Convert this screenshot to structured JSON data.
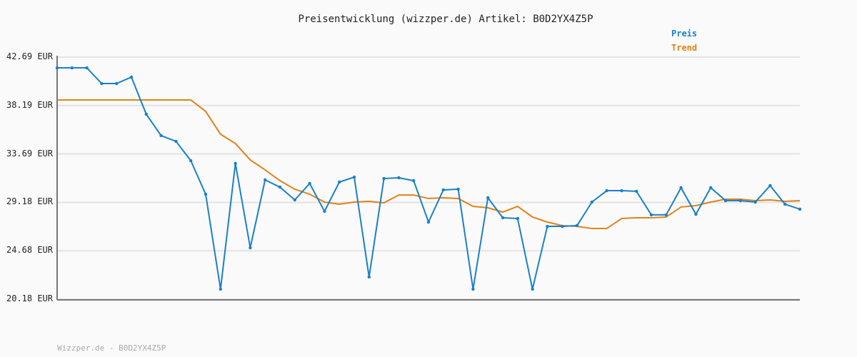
{
  "chart_data": {
    "type": "line",
    "title": "Preisentwicklung (wizzper.de) Artikel: B0D2YX4Z5P",
    "xlabel": "",
    "ylabel": "",
    "ylim": [
      20.18,
      42.69
    ],
    "yticks": [
      "20.18 EUR",
      "24.68 EUR",
      "29.18 EUR",
      "33.69 EUR",
      "38.19 EUR",
      "42.69 EUR"
    ],
    "ytick_values": [
      20.18,
      24.68,
      29.18,
      33.69,
      38.19,
      42.69
    ],
    "grid": true,
    "legend_placement": "top-right",
    "series": [
      {
        "name": "Preis",
        "color": "#1a80c8",
        "markers": true,
        "values": [
          41.69,
          41.69,
          41.69,
          40.23,
          40.23,
          40.83,
          37.38,
          35.39,
          34.86,
          33.06,
          29.94,
          21.11,
          32.8,
          24.96,
          31.27,
          30.6,
          29.41,
          30.94,
          28.35,
          31.07,
          31.53,
          22.24,
          31.4,
          31.47,
          31.2,
          27.35,
          30.34,
          30.41,
          21.11,
          29.61,
          27.75,
          27.68,
          21.11,
          26.95,
          26.95,
          27.02,
          29.21,
          30.27,
          30.27,
          30.21,
          28.02,
          28.02,
          30.54,
          28.08,
          30.54,
          29.34,
          29.34,
          29.21,
          30.74,
          29.01,
          28.55
        ]
      },
      {
        "name": "Trend",
        "color": "#e0821a",
        "markers": false,
        "values": [
          38.71,
          38.71,
          38.71,
          38.71,
          38.71,
          38.71,
          38.71,
          38.71,
          38.71,
          38.71,
          37.64,
          35.52,
          34.66,
          33.13,
          32.2,
          31.2,
          30.41,
          29.94,
          29.21,
          29.01,
          29.21,
          29.28,
          29.14,
          29.87,
          29.87,
          29.54,
          29.61,
          29.54,
          28.81,
          28.68,
          28.28,
          28.81,
          27.82,
          27.35,
          27.02,
          26.95,
          26.75,
          26.75,
          27.68,
          27.75,
          27.75,
          27.82,
          28.75,
          28.88,
          29.21,
          29.48,
          29.48,
          29.34,
          29.41,
          29.28,
          29.34
        ]
      }
    ]
  },
  "footer": "Wizzper.de - B0D2YX4Z5P"
}
